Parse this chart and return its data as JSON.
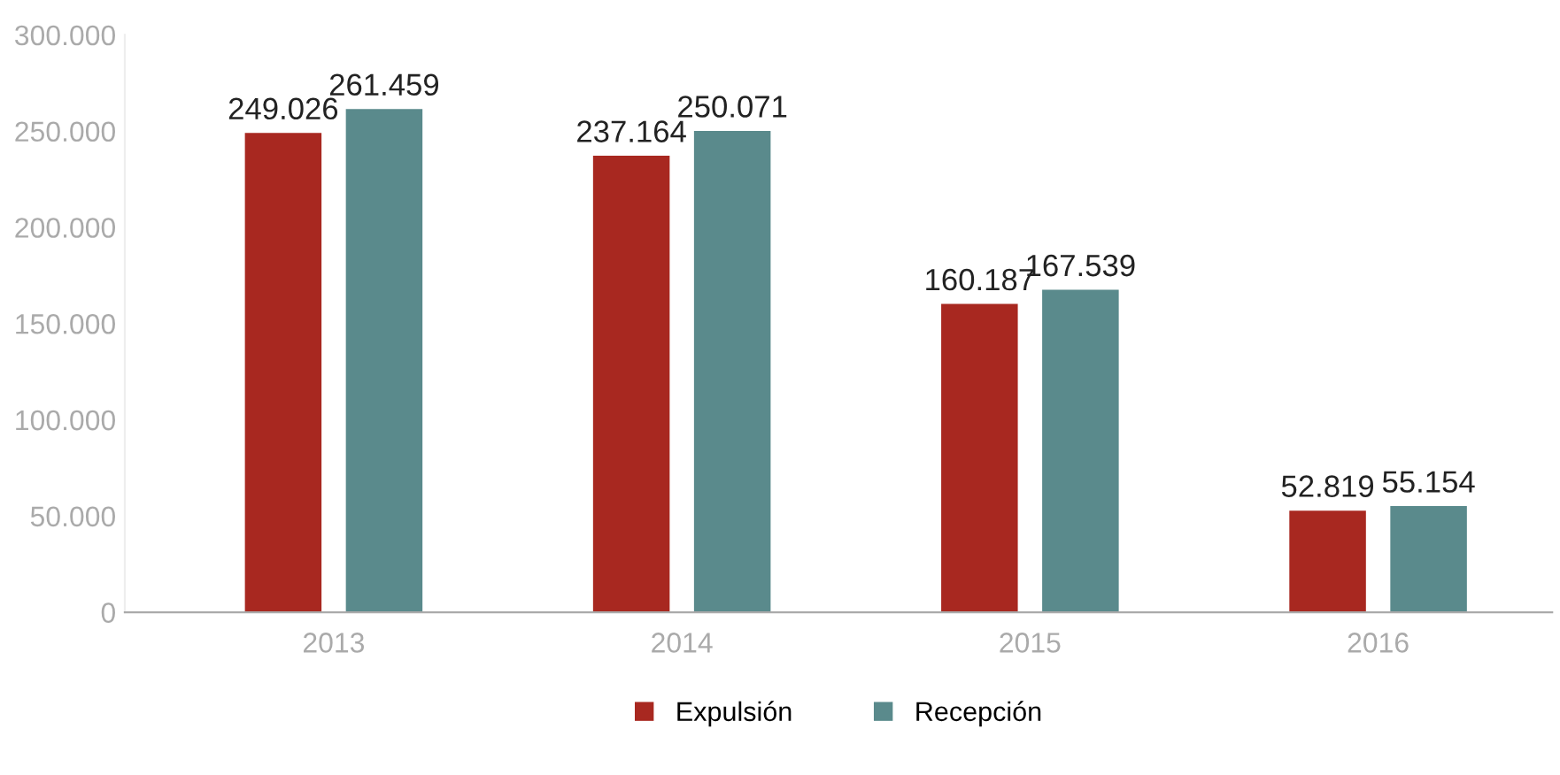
{
  "chart_data": {
    "type": "bar",
    "categories": [
      "2013",
      "2014",
      "2015",
      "2016"
    ],
    "series": [
      {
        "name": "Expulsión",
        "color": "#a82820",
        "values": [
          249026,
          237164,
          160187,
          52819
        ],
        "value_labels": [
          "249.026",
          "237.164",
          "160.187",
          "52.819"
        ]
      },
      {
        "name": "Recepción",
        "color": "#5a8a8c",
        "values": [
          261459,
          250071,
          167539,
          55154
        ],
        "value_labels": [
          "261.459",
          "250.071",
          "167.539",
          "55.154"
        ]
      }
    ],
    "ylim": [
      0,
      300000
    ],
    "yticks": [
      0,
      {
        "value": 50000,
        "label": "50.000"
      },
      {
        "value": 100000,
        "label": "100.000"
      },
      {
        "value": 150000,
        "label": "150.000"
      },
      {
        "value": 200000,
        "label": "200.000"
      },
      {
        "value": 250000,
        "label": "250.000"
      },
      {
        "value": 300000,
        "label": "300.000"
      }
    ],
    "grid": false,
    "legend": "bottom"
  }
}
